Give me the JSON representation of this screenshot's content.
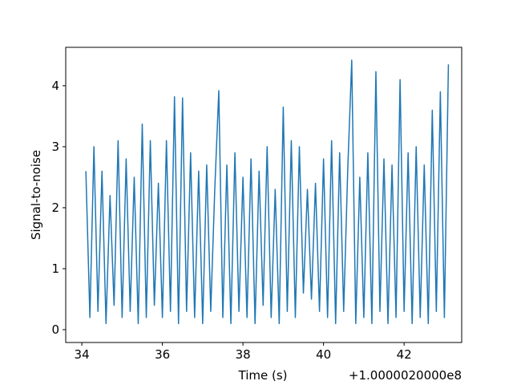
{
  "chart_data": {
    "type": "line",
    "x_label": "Time (s)",
    "y_label": "Signal-to-noise",
    "x_offset_label": "+1.0000020000e8",
    "x": [
      34.1,
      34.2,
      34.3,
      34.4,
      34.5,
      34.6,
      34.7,
      34.8,
      34.9,
      35.0,
      35.1,
      35.2,
      35.3,
      35.4,
      35.5,
      35.6,
      35.7,
      35.8,
      35.9,
      36.0,
      36.1,
      36.2,
      36.3,
      36.4,
      36.5,
      36.6,
      36.7,
      36.8,
      36.9,
      37.0,
      37.1,
      37.2,
      37.3,
      37.4,
      37.5,
      37.6,
      37.7,
      37.8,
      37.9,
      38.0,
      38.1,
      38.2,
      38.3,
      38.4,
      38.5,
      38.6,
      38.7,
      38.8,
      38.9,
      39.0,
      39.1,
      39.2,
      39.3,
      39.4,
      39.5,
      39.6,
      39.7,
      39.8,
      39.9,
      40.0,
      40.1,
      40.2,
      40.3,
      40.4,
      40.5,
      40.6,
      40.7,
      40.8,
      40.9,
      41.0,
      41.1,
      41.2,
      41.3,
      41.4,
      41.5,
      41.6,
      41.7,
      41.8,
      41.9,
      42.0,
      42.1,
      42.2,
      42.3,
      42.4,
      42.5,
      42.6,
      42.7,
      42.8,
      42.9,
      43.0,
      43.1
    ],
    "series": [
      {
        "color": "#1f77b4",
        "values": [
          2.6,
          0.2,
          3.0,
          0.3,
          2.6,
          0.1,
          2.2,
          0.4,
          3.1,
          0.2,
          2.8,
          0.3,
          2.5,
          0.1,
          3.37,
          0.2,
          3.1,
          0.4,
          2.4,
          0.2,
          3.1,
          0.3,
          3.82,
          0.1,
          3.8,
          0.3,
          2.9,
          0.2,
          2.6,
          0.1,
          2.7,
          0.3,
          2.3,
          3.92,
          0.2,
          2.7,
          0.1,
          2.9,
          0.3,
          2.5,
          0.2,
          2.8,
          0.1,
          2.6,
          0.4,
          3.0,
          0.2,
          2.3,
          0.1,
          3.65,
          0.3,
          3.1,
          0.2,
          3.0,
          0.6,
          2.3,
          0.5,
          2.4,
          0.3,
          2.8,
          0.2,
          3.1,
          0.1,
          2.9,
          0.3,
          2.6,
          4.42,
          0.1,
          2.5,
          0.2,
          2.9,
          0.1,
          4.23,
          0.3,
          2.8,
          0.1,
          2.7,
          0.2,
          4.1,
          0.3,
          2.9,
          0.1,
          3.0,
          0.2,
          2.7,
          0.1,
          3.6,
          0.3,
          3.9,
          0.2,
          4.35
        ]
      }
    ],
    "xlim": [
      33.6,
      43.43
    ],
    "xticks": [
      34,
      36,
      38,
      40,
      42
    ],
    "ylim": [
      -0.21,
      4.63
    ],
    "yticks": [
      0,
      1,
      2,
      3,
      4
    ]
  }
}
